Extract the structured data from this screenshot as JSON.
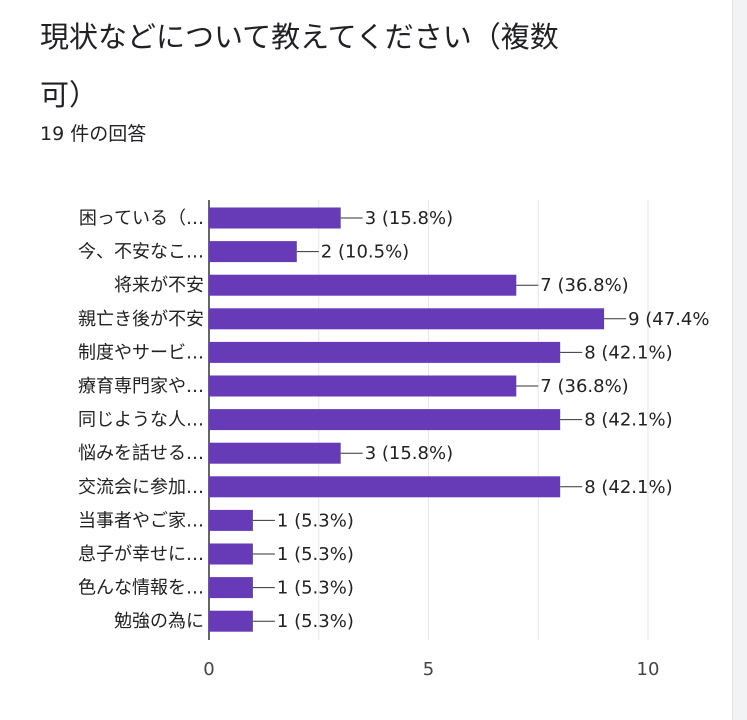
{
  "question": {
    "title": "現状などについて教えてください（複数可）",
    "response_count": "19 件の回答"
  },
  "colors": {
    "bar": "#673ab7",
    "grid": "#e6e6e6",
    "axis": "#333333"
  },
  "chart_data": {
    "type": "bar",
    "orientation": "horizontal",
    "categories": [
      "困っている（…",
      "今、不安なこ…",
      "将来が不安",
      "親亡き後が不安",
      "制度やサービ…",
      "療育専門家や…",
      "同じような人…",
      "悩みを話せる…",
      "交流会に参加…",
      "当事者やご家…",
      "息子が幸せに…",
      "色んな情報を…",
      "勉強の為に"
    ],
    "values": [
      3,
      2,
      7,
      9,
      8,
      7,
      8,
      3,
      8,
      1,
      1,
      1,
      1
    ],
    "data_labels": [
      "3 (15.8%)",
      "2 (10.5%)",
      "7 (36.8%)",
      "9 (47.4%",
      "8 (42.1%)",
      "7 (36.8%)",
      "8 (42.1%)",
      "3 (15.8%)",
      "8 (42.1%)",
      "1 (5.3%)",
      "1 (5.3%)",
      "1 (5.3%)",
      "1 (5.3%)"
    ],
    "xlim": [
      0,
      10
    ],
    "xticks": [
      0,
      5,
      10
    ],
    "grid": true
  }
}
